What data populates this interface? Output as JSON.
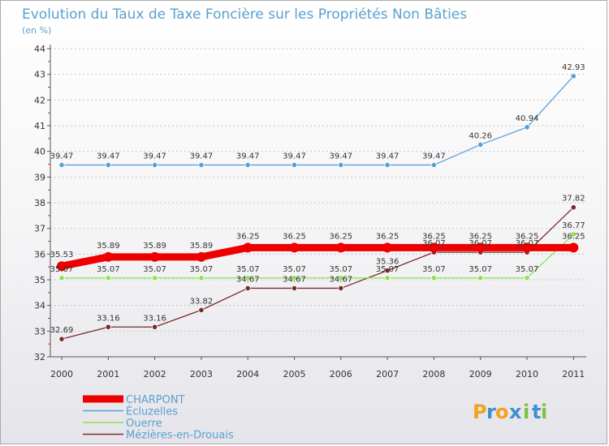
{
  "chart_data": {
    "type": "line",
    "title": "Evolution du Taux de Taxe Foncière sur les Propriétés Non Bâties",
    "ylabel": "(en %)",
    "xlabel": "",
    "ylim": [
      32,
      44
    ],
    "yticks": [
      32,
      33,
      34,
      35,
      36,
      37,
      38,
      39,
      40,
      41,
      42,
      43,
      44
    ],
    "categories": [
      "2000",
      "2001",
      "2002",
      "2003",
      "2004",
      "2005",
      "2006",
      "2007",
      "2008",
      "2009",
      "2010",
      "2011"
    ],
    "series": [
      {
        "name": "Mézières-en-Drouais",
        "color": "#7a2a2a",
        "values": [
          32.69,
          33.16,
          33.16,
          33.82,
          34.67,
          34.67,
          34.67,
          35.36,
          36.07,
          36.07,
          36.07,
          37.82
        ]
      },
      {
        "name": "Ouerre",
        "color": "#90e050",
        "values": [
          35.07,
          35.07,
          35.07,
          35.07,
          35.07,
          35.07,
          35.07,
          35.07,
          35.07,
          35.07,
          35.07,
          36.77
        ]
      },
      {
        "name": "Écluzelles",
        "color": "#5a9fd4",
        "values": [
          39.47,
          39.47,
          39.47,
          39.47,
          39.47,
          39.47,
          39.47,
          39.47,
          39.47,
          40.26,
          40.94,
          42.93
        ]
      },
      {
        "name": "CHARPONT",
        "color": "#ee0000",
        "values": [
          35.53,
          35.89,
          35.89,
          35.89,
          36.25,
          36.25,
          36.25,
          36.25,
          36.25,
          36.25,
          36.25,
          36.25
        ]
      }
    ],
    "legend": [
      "CHARPONT",
      "Écluzelles",
      "Ouerre",
      "Mézières-en-Drouais"
    ],
    "legend_position": "bottom-left"
  },
  "logo": {
    "text": "Proxiti",
    "letters": [
      "P",
      "r",
      "o",
      "x",
      "i",
      "t",
      "i"
    ],
    "colors": [
      "#f4a21a",
      "#3f8fd2",
      "#f4a21a",
      "#3f8fd2",
      "#7cc242",
      "#3f8fd2",
      "#7cc242"
    ]
  }
}
